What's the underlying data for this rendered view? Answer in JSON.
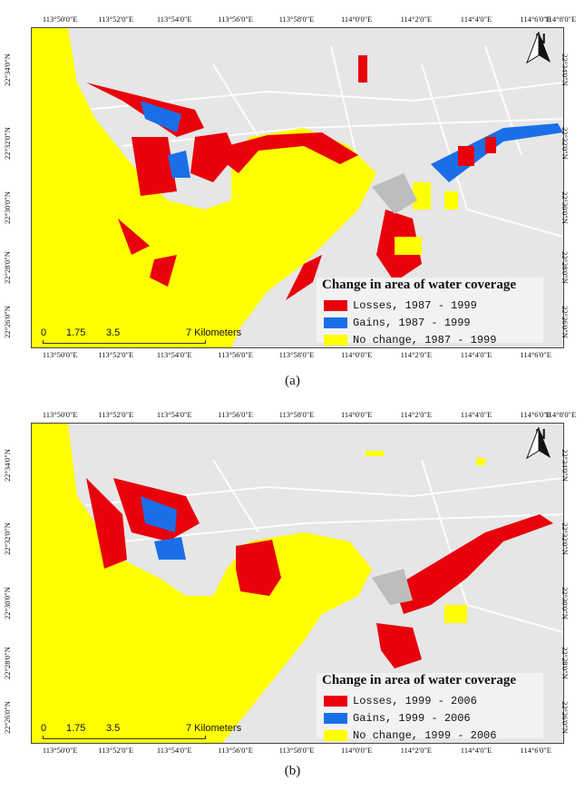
{
  "panels": [
    {
      "id": "a",
      "caption": "(a)",
      "top_ticks": [
        "113°50'0\"E",
        "113°52'0\"E",
        "113°54'0\"E",
        "113°56'0\"E",
        "113°58'0\"E",
        "114°0'0\"E",
        "114°2'0\"E",
        "114°4'0\"E",
        "114°6'0\"E",
        "114°8'0\"E"
      ],
      "bottom_ticks": [
        "113°50'0\"E",
        "113°52'0\"E",
        "113°54'0\"E",
        "113°56'0\"E",
        "113°58'0\"E",
        "114°0'0\"E",
        "114°2'0\"E",
        "114°4'0\"E",
        "114°6'0\"E"
      ],
      "left_ticks": [
        "22°34'0\"N",
        "22°32'0\"N",
        "22°30'0\"N",
        "22°28'0\"N",
        "22°26'0\"N"
      ],
      "right_ticks": [
        "22°34'0\"N",
        "22°32'0\"N",
        "22°30'0\"N",
        "22°28'0\"N",
        "22°26'0\"N"
      ],
      "legend": {
        "title": "Change in area of water coverage",
        "items": [
          {
            "label": "Losses, 1987 - 1999",
            "color": "#e8000b"
          },
          {
            "label": "Gains, 1987 - 1999",
            "color": "#1a6fe8"
          },
          {
            "label": "No change, 1987 - 1999",
            "color": "#ffff00"
          }
        ]
      }
    },
    {
      "id": "b",
      "caption": "(b)",
      "top_ticks": [
        "113°50'0\"E",
        "113°52'0\"E",
        "113°54'0\"E",
        "113°56'0\"E",
        "113°58'0\"E",
        "114°0'0\"E",
        "114°2'0\"E",
        "114°4'0\"E",
        "114°6'0\"E",
        "114°8'0\"E"
      ],
      "bottom_ticks": [
        "113°50'0\"E",
        "113°52'0\"E",
        "113°54'0\"E",
        "113°56'0\"E",
        "113°58'0\"E",
        "114°0'0\"E",
        "114°2'0\"E",
        "114°4'0\"E",
        "114°6'0\"E"
      ],
      "left_ticks": [
        "22°34'0\"N",
        "22°32'0\"N",
        "22°30'0\"N",
        "22°28'0\"N",
        "22°26'0\"N"
      ],
      "right_ticks": [
        "22°34'0\"N",
        "22°32'0\"N",
        "22°30'0\"N",
        "22°28'0\"N",
        "22°26'0\"N"
      ],
      "legend": {
        "title": "Change in area of water coverage",
        "items": [
          {
            "label": "Losses, 1999 - 2006",
            "color": "#e8000b"
          },
          {
            "label": "Gains, 1999 - 2006",
            "color": "#1a6fe8"
          },
          {
            "label": "No change, 1999 - 2006",
            "color": "#ffff00"
          }
        ]
      }
    }
  ],
  "scalebar": {
    "labels": [
      "0",
      "1.75",
      "3.5",
      "7 Kilometers"
    ]
  },
  "north_label": "N",
  "colors": {
    "water": "#ffff00",
    "loss": "#e8000b",
    "gain": "#1a6fe8",
    "land": "#e6e6e6",
    "urban": "#d3d3d3"
  }
}
